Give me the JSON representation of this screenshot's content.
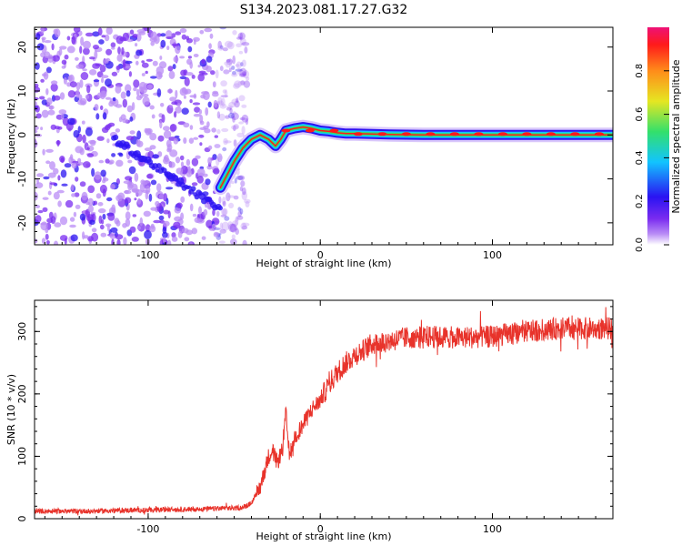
{
  "title": "S134.2023.081.17.27.G32",
  "colors": {
    "snr_line": "#e8332b",
    "axis": "#000000",
    "colormap": [
      "#ffffff",
      "#b98cf6",
      "#7a2cf0",
      "#2a13f2",
      "#12c4ff",
      "#33e06b",
      "#e6e622",
      "#ff8c1a",
      "#ff1a1a",
      "#ee1177"
    ]
  },
  "chart_data": [
    {
      "type": "heatmap",
      "xlabel": "Height of straight line (km)",
      "ylabel": "Frequency (Hz)",
      "xlim": [
        -166,
        170
      ],
      "ylim": [
        -25,
        24.5
      ],
      "xticks": [
        -100,
        0,
        100
      ],
      "yticks": [
        -20,
        -10,
        0,
        10,
        20
      ],
      "colorbar": {
        "label": "Normalized spectral amplitude",
        "range": [
          0,
          1
        ],
        "ticks": [
          0.0,
          0.2,
          0.4,
          0.6,
          0.8
        ]
      },
      "ridge": {
        "x": [
          -58,
          -54,
          -50,
          -45,
          -40,
          -35,
          -30,
          -26,
          -23,
          -20,
          -15,
          -10,
          -5,
          0,
          5,
          10,
          15,
          20,
          30,
          40,
          60,
          80,
          100,
          120,
          140,
          170
        ],
        "y": [
          -12,
          -9,
          -6,
          -3,
          -1,
          0,
          -1,
          -2.5,
          -1,
          1,
          1.5,
          1.8,
          1.5,
          1,
          0.8,
          0.5,
          0.3,
          0.3,
          0.2,
          0.1,
          0,
          0,
          0,
          0,
          0,
          0
        ]
      },
      "noise_region_x": [
        -166,
        -50
      ]
    },
    {
      "type": "line",
      "xlabel": "Height of straight line (km)",
      "ylabel": "SNR (10 * v/v)",
      "xlim": [
        -166,
        170
      ],
      "ylim": [
        0,
        350
      ],
      "xticks": [
        -100,
        0,
        100
      ],
      "yticks": [
        0,
        100,
        200,
        300
      ],
      "series": [
        {
          "x": [
            -166,
            -140,
            -120,
            -100,
            -80,
            -60,
            -45,
            -40,
            -35,
            -32,
            -30,
            -28,
            -25,
            -22,
            -20,
            -18,
            -15,
            -10,
            -5,
            0,
            5,
            10,
            15,
            20,
            25,
            30,
            40,
            50,
            60,
            80,
            100,
            120,
            140,
            160,
            170
          ],
          "y": [
            12,
            12,
            13,
            14,
            15,
            16,
            18,
            25,
            50,
            80,
            100,
            110,
            90,
            110,
            170,
            100,
            130,
            150,
            175,
            190,
            215,
            235,
            250,
            262,
            270,
            280,
            285,
            290,
            292,
            290,
            292,
            300,
            305,
            305,
            305
          ]
        }
      ]
    }
  ]
}
